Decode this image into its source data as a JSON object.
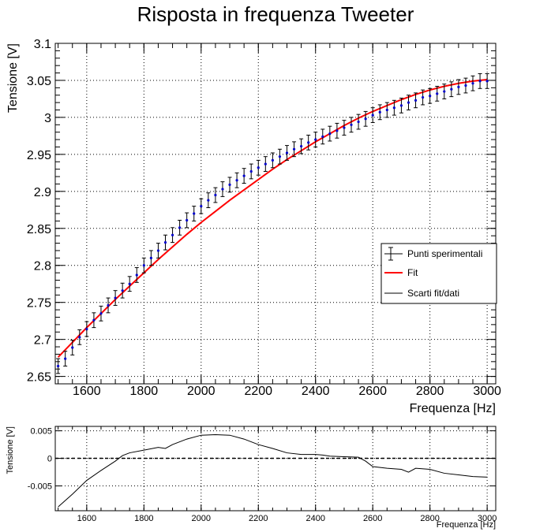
{
  "chart_data": [
    {
      "type": "scatter",
      "title": "Risposta in frequenza Tweeter",
      "xlabel": "Frequenza [Hz]",
      "ylabel": "Tensione [V]",
      "xlim": [
        1490,
        3030
      ],
      "ylim": [
        2.64,
        3.1
      ],
      "grid": true,
      "legend_position": "right",
      "x_ticks": [
        1600,
        1800,
        2000,
        2200,
        2400,
        2600,
        2800,
        3000
      ],
      "y_ticks": [
        2.65,
        2.7,
        2.75,
        2.8,
        2.85,
        2.9,
        2.95,
        3,
        3.05,
        3.1
      ],
      "y_error": 0.01,
      "legend": [
        {
          "label": "Punti sperimentali",
          "symbol": "errorbar",
          "color": "#000000"
        },
        {
          "label": "Fit",
          "symbol": "line",
          "color": "#ff0000"
        },
        {
          "label": "Scarti fit/dati",
          "symbol": "line",
          "color": "#000000"
        }
      ],
      "series": [
        {
          "name": "Punti sperimentali",
          "color": "#0000cc",
          "x": [
            1500,
            1525,
            1550,
            1575,
            1600,
            1625,
            1650,
            1675,
            1700,
            1725,
            1750,
            1775,
            1800,
            1825,
            1850,
            1875,
            1900,
            1925,
            1950,
            1975,
            2000,
            2025,
            2050,
            2075,
            2100,
            2125,
            2150,
            2175,
            2200,
            2225,
            2250,
            2275,
            2300,
            2325,
            2350,
            2375,
            2400,
            2425,
            2450,
            2475,
            2500,
            2525,
            2550,
            2575,
            2600,
            2625,
            2650,
            2675,
            2700,
            2725,
            2750,
            2775,
            2800,
            2825,
            2850,
            2875,
            2900,
            2925,
            2950,
            2975,
            3000
          ],
          "y": [
            2.664,
            2.674,
            2.689,
            2.703,
            2.714,
            2.726,
            2.735,
            2.746,
            2.756,
            2.766,
            2.775,
            2.787,
            2.8,
            2.81,
            2.82,
            2.831,
            2.841,
            2.851,
            2.861,
            2.87,
            2.88,
            2.888,
            2.895,
            2.903,
            2.909,
            2.915,
            2.921,
            2.927,
            2.932,
            2.937,
            2.942,
            2.947,
            2.952,
            2.957,
            2.961,
            2.966,
            2.97,
            2.974,
            2.978,
            2.982,
            2.986,
            2.99,
            2.994,
            2.998,
            3.003,
            3.007,
            3.01,
            3.013,
            3.016,
            3.02,
            3.023,
            3.027,
            3.029,
            3.032,
            3.035,
            3.038,
            3.041,
            3.043,
            3.046,
            3.049,
            3.049
          ]
        },
        {
          "name": "Fit",
          "color": "#ff0000",
          "x": [
            1500,
            1550,
            1600,
            1650,
            1700,
            1750,
            1800,
            1850,
            1900,
            1950,
            2000,
            2050,
            2100,
            2150,
            2200,
            2250,
            2300,
            2350,
            2400,
            2450,
            2500,
            2550,
            2600,
            2650,
            2700,
            2750,
            2800,
            2850,
            2900,
            2950,
            3000
          ],
          "y": [
            2.676,
            2.696,
            2.716,
            2.735,
            2.754,
            2.772,
            2.79,
            2.808,
            2.825,
            2.842,
            2.858,
            2.873,
            2.888,
            2.902,
            2.916,
            2.93,
            2.943,
            2.955,
            2.967,
            2.978,
            2.989,
            2.999,
            3.008,
            3.016,
            3.024,
            3.031,
            3.037,
            3.042,
            3.046,
            3.049,
            3.051
          ]
        }
      ]
    },
    {
      "type": "line",
      "xlabel": "Frequenza [Hz]",
      "ylabel": "Tensione [V]",
      "xlim": [
        1490,
        3030
      ],
      "ylim": [
        -0.0095,
        0.0058
      ],
      "grid": true,
      "x_ticks": [
        1600,
        1800,
        2000,
        2200,
        2400,
        2600,
        2800,
        3000
      ],
      "y_ticks": [
        0.005,
        0,
        -0.005
      ],
      "y_tick_labels": [
        "0.005",
        "0",
        "-0.005"
      ],
      "reference_line": 0,
      "series": [
        {
          "name": "Scarti fit/dati",
          "color": "#000000",
          "x": [
            1500,
            1550,
            1600,
            1650,
            1700,
            1725,
            1750,
            1800,
            1850,
            1875,
            1900,
            1950,
            2000,
            2050,
            2100,
            2150,
            2200,
            2250,
            2300,
            2350,
            2400,
            2425,
            2450,
            2500,
            2550,
            2575,
            2600,
            2650,
            2700,
            2725,
            2750,
            2800,
            2850,
            2900,
            2950,
            3000
          ],
          "y": [
            -0.0088,
            -0.0065,
            -0.004,
            -0.0022,
            -0.0005,
            0.0005,
            0.001,
            0.0015,
            0.002,
            0.0018,
            0.0025,
            0.0035,
            0.0042,
            0.0043,
            0.0042,
            0.0035,
            0.0025,
            0.0018,
            0.001,
            0.0007,
            0.0007,
            0.0006,
            0.0004,
            0.0003,
            0.0002,
            -0.0005,
            -0.0015,
            -0.0018,
            -0.002,
            -0.0025,
            -0.0018,
            -0.002,
            -0.0027,
            -0.003,
            -0.0033,
            -0.0034
          ]
        }
      ]
    }
  ]
}
